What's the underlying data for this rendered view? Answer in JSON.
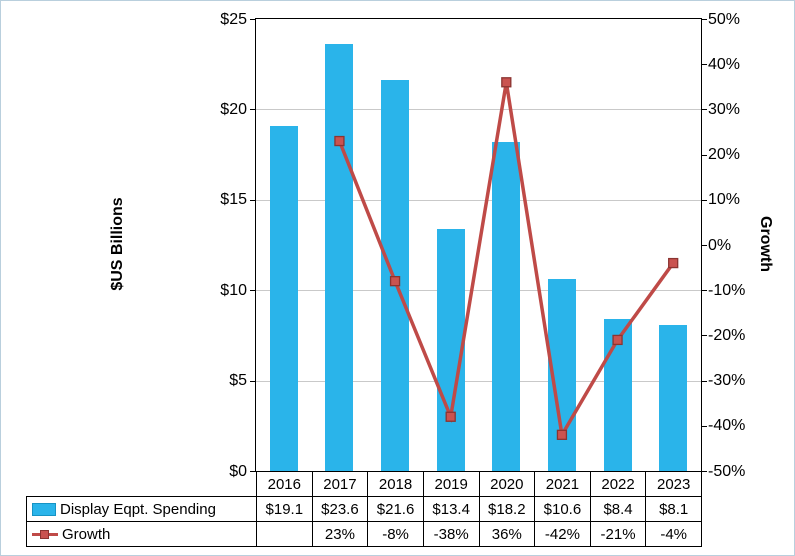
{
  "chart_data": {
    "type": "bar-line-combo",
    "title": "",
    "categories": [
      "2016",
      "2017",
      "2018",
      "2019",
      "2020",
      "2021",
      "2022",
      "2023"
    ],
    "series": [
      {
        "name": "Display Eqpt. Spending",
        "type": "bar",
        "axis": "left",
        "values": [
          19.1,
          23.6,
          21.6,
          13.4,
          18.2,
          10.6,
          8.4,
          8.1
        ],
        "labels": [
          "$19.1",
          "$23.6",
          "$21.6",
          "$13.4",
          "$18.2",
          "$10.6",
          "$8.4",
          "$8.1"
        ],
        "color": "#2ab4ea"
      },
      {
        "name": "Growth",
        "type": "line",
        "axis": "right",
        "values": [
          null,
          23,
          -8,
          -38,
          36,
          -42,
          -21,
          -4
        ],
        "labels": [
          "",
          "23%",
          "-8%",
          "-38%",
          "36%",
          "-42%",
          "-21%",
          "-4%"
        ],
        "color": "#bf4a47",
        "marker_fill": "#ca5350",
        "marker_border": "#8b3431"
      }
    ],
    "ylabel_left": "$US Billions",
    "ylabel_right": "Growth",
    "left_axis": {
      "min": 0,
      "max": 25,
      "step": 5,
      "tick_labels": [
        "$0",
        "$5",
        "$10",
        "$15",
        "$20",
        "$25"
      ]
    },
    "right_axis": {
      "min": -50,
      "max": 50,
      "step": 10,
      "tick_labels": [
        "-50%",
        "-40%",
        "-30%",
        "-20%",
        "-10%",
        "0%",
        "10%",
        "20%",
        "30%",
        "40%",
        "50%"
      ]
    },
    "grid": true,
    "legend_position": "bottom-table"
  }
}
